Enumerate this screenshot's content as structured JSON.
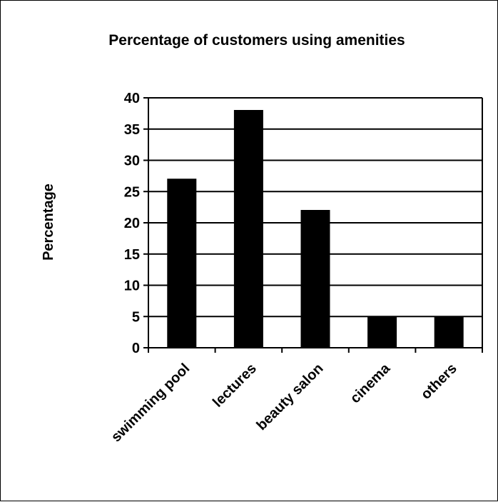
{
  "chart_data": {
    "type": "bar",
    "title": "Percentage of customers using amenities",
    "xlabel": "",
    "ylabel": "Percentage",
    "categories": [
      "swimming pool",
      "lectures",
      "beauty salon",
      "cinema",
      "others"
    ],
    "values": [
      27,
      38,
      22,
      5,
      5
    ],
    "ylim": [
      0,
      40
    ],
    "yticks": [
      0,
      5,
      10,
      15,
      20,
      25,
      30,
      35,
      40
    ],
    "grid": true,
    "legend": "none",
    "bar_color": "#000000"
  }
}
